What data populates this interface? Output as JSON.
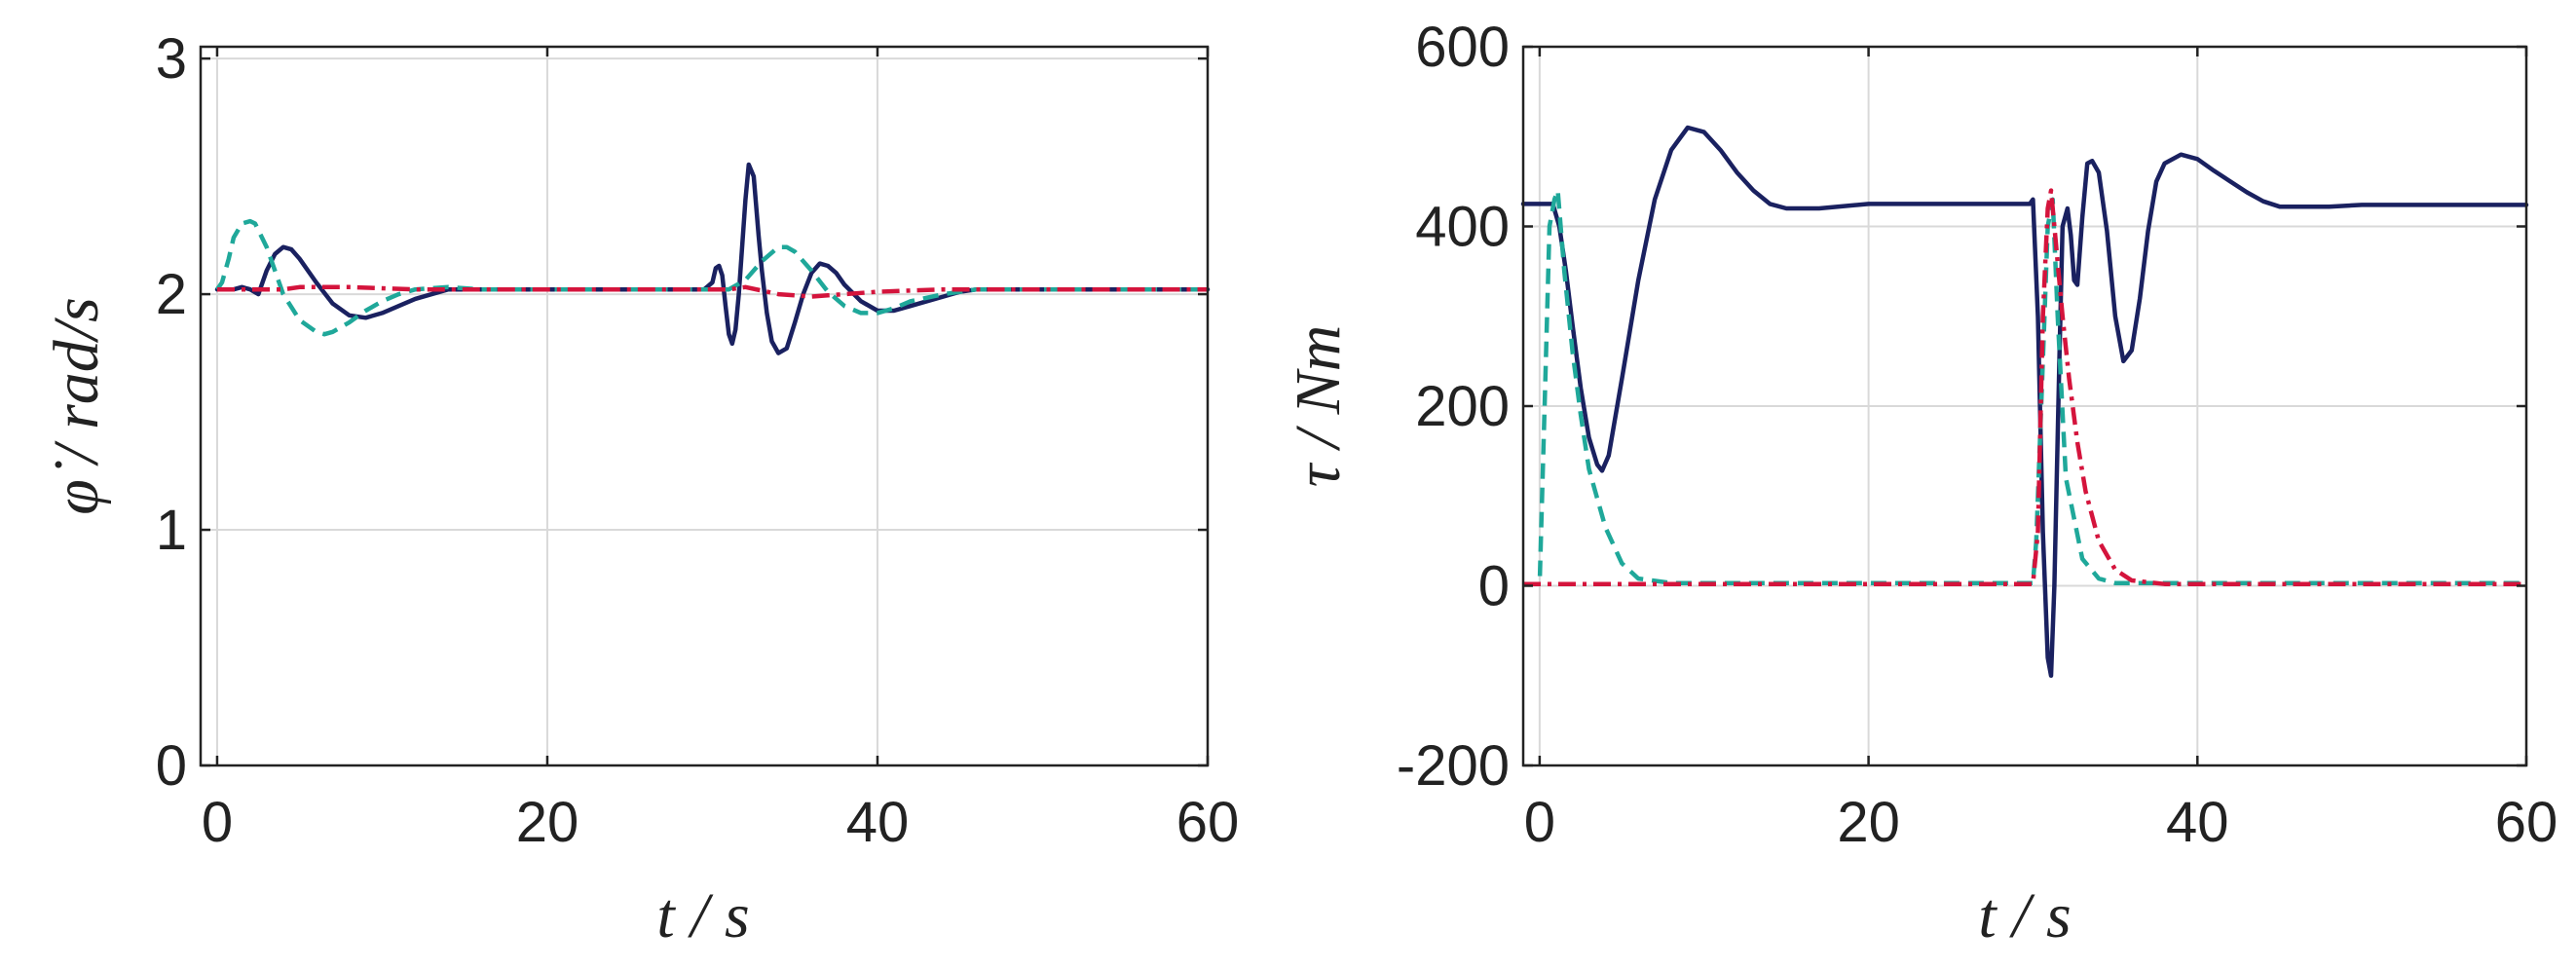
{
  "chart_data": [
    {
      "type": "line",
      "xlabel": "t / s",
      "ylabel": "φ̇ / rad/s",
      "xlim": [
        -1,
        60
      ],
      "ylim": [
        0,
        3.05
      ],
      "xticks": [
        "0",
        "20",
        "40",
        "60"
      ],
      "yticks": [
        "0",
        "1",
        "2",
        "3"
      ],
      "grid": true,
      "series": [
        {
          "color": "#1a2160",
          "style": "solid",
          "x": [
            0,
            1,
            1.5,
            2,
            2.5,
            3,
            3.5,
            4,
            4.5,
            5,
            6,
            7,
            8,
            9,
            10,
            11,
            12,
            13,
            14,
            15,
            16,
            18,
            20,
            25,
            29.5,
            30,
            30.2,
            30.4,
            30.6,
            30.8,
            31,
            31.2,
            31.4,
            31.6,
            31.8,
            32,
            32.2,
            32.5,
            32.8,
            33,
            33.3,
            33.6,
            34,
            34.5,
            35,
            35.5,
            36,
            36.5,
            37,
            37.5,
            38,
            39,
            40,
            41,
            42,
            43,
            44,
            45,
            46,
            48,
            50,
            55,
            60
          ],
          "y": [
            2.02,
            2.02,
            2.03,
            2.02,
            2.0,
            2.1,
            2.17,
            2.2,
            2.19,
            2.15,
            2.05,
            1.96,
            1.91,
            1.9,
            1.92,
            1.95,
            1.98,
            2.0,
            2.02,
            2.02,
            2.02,
            2.02,
            2.02,
            2.02,
            2.02,
            2.05,
            2.11,
            2.12,
            2.08,
            1.95,
            1.83,
            1.79,
            1.85,
            2.0,
            2.2,
            2.4,
            2.55,
            2.5,
            2.25,
            2.1,
            1.92,
            1.8,
            1.75,
            1.77,
            1.88,
            2.0,
            2.09,
            2.13,
            2.12,
            2.09,
            2.04,
            1.97,
            1.93,
            1.93,
            1.95,
            1.97,
            1.99,
            2.01,
            2.02,
            2.02,
            2.02,
            2.02,
            2.02
          ]
        },
        {
          "color": "#1fa89a",
          "style": "dashed",
          "x": [
            0,
            0.3,
            0.7,
            1,
            1.5,
            2,
            2.3,
            3,
            3.5,
            4,
            5,
            6,
            6.5,
            7,
            8,
            9,
            10,
            11,
            12,
            14,
            16,
            20,
            25,
            30,
            31,
            32,
            33,
            34,
            34.5,
            35,
            36,
            37,
            38,
            39,
            40,
            41,
            42,
            44,
            46,
            50,
            55,
            60
          ],
          "y": [
            2.02,
            2.05,
            2.15,
            2.24,
            2.3,
            2.31,
            2.3,
            2.2,
            2.1,
            2.0,
            1.89,
            1.84,
            1.83,
            1.84,
            1.88,
            1.93,
            1.97,
            2.0,
            2.02,
            2.03,
            2.02,
            2.02,
            2.02,
            2.02,
            2.02,
            2.06,
            2.14,
            2.2,
            2.2,
            2.18,
            2.1,
            2.01,
            1.95,
            1.92,
            1.92,
            1.94,
            1.97,
            2.0,
            2.02,
            2.02,
            2.02,
            2.02
          ]
        },
        {
          "color": "#d4143c",
          "style": "dashdot",
          "x": [
            0,
            2,
            4,
            5,
            8,
            12,
            30,
            31,
            32,
            34,
            36,
            40,
            44,
            60
          ],
          "y": [
            2.02,
            2.02,
            2.02,
            2.03,
            2.03,
            2.02,
            2.02,
            2.02,
            2.03,
            2.0,
            1.99,
            2.01,
            2.02,
            2.02
          ]
        }
      ]
    },
    {
      "type": "line",
      "xlabel": "t / s",
      "ylabel": "τ / Nm",
      "xlim": [
        -1,
        60
      ],
      "ylim": [
        -200,
        600
      ],
      "xticks": [
        "0",
        "20",
        "40",
        "60"
      ],
      "yticks": [
        "-200",
        "0",
        "200",
        "400",
        "600"
      ],
      "grid": true,
      "series": [
        {
          "color": "#1a2160",
          "style": "solid",
          "x": [
            -1,
            0,
            0.8,
            1.2,
            1.6,
            2,
            2.5,
            3,
            3.5,
            3.8,
            4.2,
            5,
            6,
            7,
            8,
            9,
            10,
            11,
            12,
            13,
            14,
            15,
            17,
            20,
            25,
            29.5,
            29.8,
            30,
            30.3,
            30.6,
            30.9,
            31.1,
            31.3,
            31.6,
            31.8,
            32.1,
            32.3,
            32.5,
            32.7,
            33,
            33.3,
            33.6,
            34,
            34.5,
            35,
            35.5,
            36,
            36.5,
            37,
            37.5,
            38,
            39,
            40,
            41,
            42,
            43,
            44,
            45,
            46,
            48,
            50,
            55,
            60
          ],
          "y": [
            425,
            425,
            425,
            400,
            350,
            290,
            220,
            165,
            135,
            128,
            145,
            230,
            340,
            430,
            485,
            510,
            505,
            485,
            460,
            440,
            425,
            420,
            420,
            425,
            425,
            425,
            425,
            430,
            300,
            60,
            -80,
            -100,
            0,
            250,
            400,
            420,
            390,
            340,
            335,
            410,
            470,
            473,
            460,
            395,
            300,
            250,
            262,
            320,
            395,
            450,
            470,
            480,
            475,
            462,
            450,
            438,
            428,
            422,
            422,
            422,
            424,
            424,
            424
          ]
        },
        {
          "color": "#1fa89a",
          "style": "dashed",
          "x": [
            -1,
            0,
            0.3,
            0.6,
            0.9,
            1.1,
            1.5,
            2,
            2.5,
            3,
            4,
            5,
            6,
            8,
            20,
            29.5,
            30,
            30.2,
            30.6,
            30.9,
            31.2,
            31.5,
            32,
            33,
            34,
            35,
            36,
            40,
            60
          ],
          "y": [
            2,
            2,
            200,
            400,
            430,
            440,
            350,
            260,
            190,
            130,
            65,
            25,
            8,
            3,
            3,
            3,
            3,
            50,
            250,
            400,
            430,
            300,
            120,
            30,
            8,
            3,
            3,
            3,
            3
          ]
        },
        {
          "color": "#d4143c",
          "style": "dashdot",
          "x": [
            -1,
            20,
            29.5,
            30,
            30.3,
            30.6,
            30.9,
            31.1,
            31.4,
            31.8,
            32.2,
            32.7,
            33.2,
            34,
            35,
            36,
            38,
            40,
            60
          ],
          "y": [
            2,
            2,
            2,
            2,
            60,
            300,
            420,
            440,
            380,
            300,
            230,
            160,
            105,
            50,
            18,
            6,
            2,
            2,
            2
          ]
        }
      ]
    }
  ]
}
